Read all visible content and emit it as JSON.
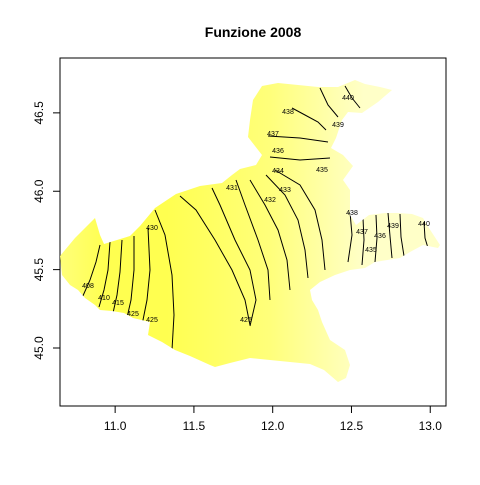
{
  "chart_data": {
    "type": "contour-map",
    "title": "Funzione 2008",
    "xlabel": "",
    "ylabel": "",
    "xlim": [
      10.65,
      13.1
    ],
    "ylim": [
      44.63,
      46.85
    ],
    "x_ticks": [
      "11.0",
      "11.5",
      "12.0",
      "12.5",
      "13.0"
    ],
    "y_ticks": [
      "45.0",
      "45.5",
      "46.0",
      "46.5"
    ],
    "fill_colors": {
      "low": "#ffff50",
      "mid": "#ffff7a",
      "high": "#ffffc8"
    },
    "contour_labels": [
      "408",
      "410",
      "415",
      "420",
      "425",
      "430",
      "431",
      "432",
      "433",
      "434",
      "435",
      "436",
      "437",
      "438",
      "439",
      "440"
    ],
    "legend": "none",
    "grid": false
  }
}
